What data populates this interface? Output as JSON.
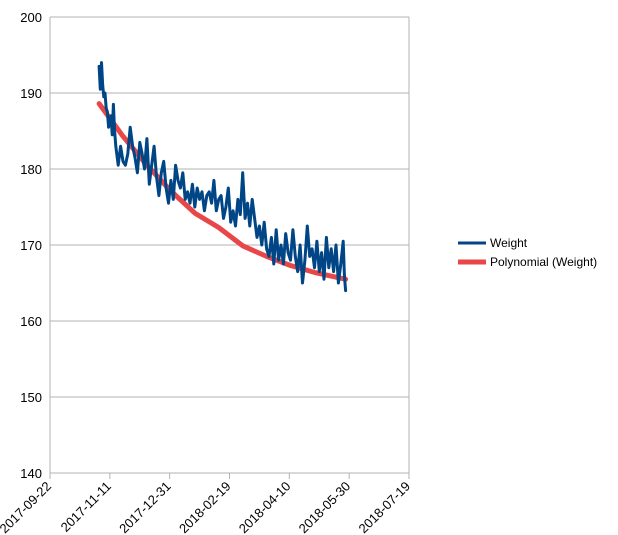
{
  "chart_data": {
    "type": "line",
    "title": "",
    "xlabel": "",
    "ylabel": "",
    "ylim": [
      140,
      200
    ],
    "y_ticks": [
      140,
      150,
      160,
      170,
      180,
      190,
      200
    ],
    "xlim": [
      "2017-09-22",
      "2018-07-19"
    ],
    "x_ticks": [
      "2017-09-22",
      "2017-11-11",
      "2017-12-31",
      "2018-02-19",
      "2018-04-10",
      "2018-05-30",
      "2018-07-19"
    ],
    "grid": "horizontal",
    "legend_position": "right",
    "series": [
      {
        "name": "Weight",
        "color": "#004586",
        "x": [
          "2017-11-02",
          "2017-11-03",
          "2017-11-04",
          "2017-11-05",
          "2017-11-06",
          "2017-11-07",
          "2017-11-08",
          "2017-11-09",
          "2017-11-10",
          "2017-11-11",
          "2017-11-12",
          "2017-11-13",
          "2017-11-14",
          "2017-11-15",
          "2017-11-16",
          "2017-11-18",
          "2017-11-20",
          "2017-11-22",
          "2017-11-24",
          "2017-11-26",
          "2017-11-28",
          "2017-11-30",
          "2017-12-02",
          "2017-12-04",
          "2017-12-06",
          "2017-12-08",
          "2017-12-10",
          "2017-12-12",
          "2017-12-14",
          "2017-12-16",
          "2017-12-18",
          "2017-12-20",
          "2017-12-22",
          "2017-12-24",
          "2017-12-26",
          "2017-12-28",
          "2017-12-30",
          "2018-01-01",
          "2018-01-03",
          "2018-01-05",
          "2018-01-07",
          "2018-01-09",
          "2018-01-11",
          "2018-01-13",
          "2018-01-15",
          "2018-01-17",
          "2018-01-19",
          "2018-01-21",
          "2018-01-23",
          "2018-01-25",
          "2018-01-27",
          "2018-01-29",
          "2018-01-31",
          "2018-02-02",
          "2018-02-04",
          "2018-02-06",
          "2018-02-08",
          "2018-02-10",
          "2018-02-12",
          "2018-02-14",
          "2018-02-16",
          "2018-02-18",
          "2018-02-20",
          "2018-02-22",
          "2018-02-24",
          "2018-02-26",
          "2018-02-28",
          "2018-03-02",
          "2018-03-04",
          "2018-03-06",
          "2018-03-08",
          "2018-03-10",
          "2018-03-12",
          "2018-03-14",
          "2018-03-16",
          "2018-03-18",
          "2018-03-20",
          "2018-03-22",
          "2018-03-24",
          "2018-03-26",
          "2018-03-28",
          "2018-03-30",
          "2018-04-01",
          "2018-04-03",
          "2018-04-05",
          "2018-04-07",
          "2018-04-09",
          "2018-04-11",
          "2018-04-13",
          "2018-04-15",
          "2018-04-17",
          "2018-04-19",
          "2018-04-21",
          "2018-04-23",
          "2018-04-25",
          "2018-04-27",
          "2018-04-29",
          "2018-05-01",
          "2018-05-03",
          "2018-05-05",
          "2018-05-07",
          "2018-05-09",
          "2018-05-11",
          "2018-05-13",
          "2018-05-15",
          "2018-05-17",
          "2018-05-19",
          "2018-05-21",
          "2018-05-23",
          "2018-05-25",
          "2018-05-26",
          "2018-05-27"
        ],
        "y": [
          193.5,
          190.5,
          194.0,
          191.0,
          189.5,
          190.0,
          188.0,
          187.5,
          185.5,
          186.0,
          187.0,
          184.5,
          188.5,
          185.0,
          183.0,
          180.5,
          183.0,
          181.0,
          180.5,
          182.0,
          185.5,
          183.0,
          181.5,
          179.5,
          183.5,
          182.0,
          180.0,
          184.0,
          178.0,
          180.5,
          183.0,
          179.0,
          176.5,
          179.5,
          181.0,
          177.5,
          175.5,
          178.5,
          176.0,
          180.5,
          178.5,
          177.5,
          179.5,
          176.0,
          177.0,
          175.5,
          178.0,
          175.0,
          177.5,
          176.0,
          177.0,
          174.5,
          176.5,
          177.0,
          175.5,
          178.5,
          174.5,
          176.0,
          176.5,
          173.5,
          175.0,
          177.5,
          173.0,
          174.5,
          172.5,
          176.0,
          174.0,
          179.5,
          173.5,
          175.5,
          172.5,
          176.0,
          173.5,
          171.0,
          172.5,
          170.0,
          173.0,
          169.5,
          168.5,
          171.0,
          167.5,
          172.0,
          168.0,
          170.0,
          167.5,
          171.5,
          169.0,
          168.0,
          172.0,
          168.5,
          166.5,
          170.0,
          165.0,
          168.0,
          172.5,
          168.5,
          169.5,
          167.0,
          170.5,
          166.5,
          169.0,
          165.5,
          171.0,
          167.0,
          169.5,
          166.5,
          170.0,
          165.0,
          167.5,
          170.5,
          166.0,
          164.0
        ]
      },
      {
        "name": "Polynomial (Weight)",
        "color": "#e8474a",
        "x": [
          "2017-11-02",
          "2017-11-22",
          "2017-12-12",
          "2018-01-01",
          "2018-01-21",
          "2018-02-10",
          "2018-03-02",
          "2018-03-22",
          "2018-04-11",
          "2018-05-01",
          "2018-05-21",
          "2018-05-27"
        ],
        "y": [
          188.6,
          184.3,
          180.5,
          177.1,
          174.2,
          172.3,
          169.9,
          168.5,
          167.3,
          166.4,
          165.7,
          165.5
        ]
      }
    ]
  }
}
